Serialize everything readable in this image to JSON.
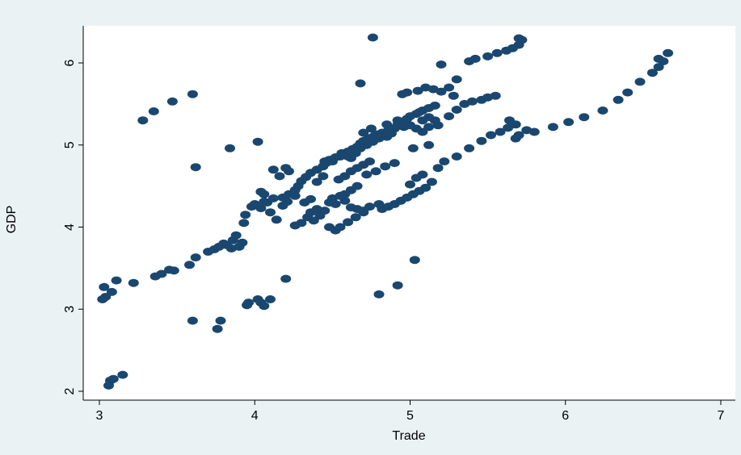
{
  "chart_data": {
    "type": "scatter",
    "title": "",
    "xlabel": "Trade",
    "ylabel": "GDP",
    "xlim": [
      2.95,
      7.05
    ],
    "ylim": [
      1.9,
      6.45
    ],
    "xticks": [
      3,
      4,
      5,
      6,
      7
    ],
    "yticks": [
      2,
      3,
      4,
      5,
      6
    ],
    "grid": false,
    "colors": {
      "background": "#eaf2f3",
      "plot_area": "#ffffff",
      "marker": "#1a476f",
      "axis": "#000000"
    },
    "series": [
      {
        "points": [
          [
            3.06,
            2.07
          ],
          [
            3.07,
            2.13
          ],
          [
            3.09,
            2.15
          ],
          [
            3.15,
            2.2
          ],
          [
            3.02,
            3.12
          ],
          [
            3.04,
            3.15
          ],
          [
            3.08,
            3.21
          ],
          [
            3.03,
            3.27
          ],
          [
            3.11,
            3.35
          ],
          [
            3.22,
            3.32
          ],
          [
            3.36,
            3.4
          ],
          [
            3.4,
            3.43
          ],
          [
            3.45,
            3.48
          ],
          [
            3.48,
            3.47
          ],
          [
            3.58,
            3.54
          ],
          [
            3.62,
            3.63
          ],
          [
            3.7,
            3.7
          ],
          [
            3.74,
            3.73
          ],
          [
            3.77,
            3.76
          ],
          [
            3.8,
            3.8
          ],
          [
            3.82,
            3.78
          ],
          [
            3.86,
            3.84
          ],
          [
            3.88,
            3.9
          ],
          [
            3.85,
            3.74
          ],
          [
            3.92,
            3.81
          ],
          [
            3.9,
            3.76
          ],
          [
            3.93,
            4.05
          ],
          [
            3.94,
            4.15
          ],
          [
            3.98,
            4.25
          ],
          [
            4.0,
            4.28
          ],
          [
            4.04,
            4.23
          ],
          [
            4.06,
            4.31
          ],
          [
            4.04,
            4.43
          ],
          [
            4.1,
            4.18
          ],
          [
            4.14,
            4.09
          ],
          [
            4.18,
            4.26
          ],
          [
            4.21,
            4.31
          ],
          [
            4.18,
            4.36
          ],
          [
            4.22,
            4.4
          ],
          [
            4.26,
            4.45
          ],
          [
            4.28,
            4.5
          ],
          [
            4.3,
            4.56
          ],
          [
            4.33,
            4.61
          ],
          [
            4.36,
            4.66
          ],
          [
            4.4,
            4.7
          ],
          [
            4.44,
            4.74
          ],
          [
            4.45,
            4.8
          ],
          [
            4.48,
            4.82
          ],
          [
            4.52,
            4.85
          ],
          [
            4.55,
            4.86
          ],
          [
            4.58,
            4.88
          ],
          [
            4.6,
            4.92
          ],
          [
            4.63,
            4.95
          ],
          [
            4.66,
            4.98
          ],
          [
            4.68,
            5.02
          ],
          [
            4.7,
            5.05
          ],
          [
            4.73,
            5.08
          ],
          [
            4.76,
            5.1
          ],
          [
            4.78,
            5.13
          ],
          [
            4.82,
            5.15
          ],
          [
            4.86,
            5.18
          ],
          [
            4.88,
            5.2
          ],
          [
            4.92,
            5.25
          ],
          [
            4.95,
            5.28
          ],
          [
            4.98,
            5.32
          ],
          [
            5.0,
            5.35
          ],
          [
            5.04,
            5.38
          ],
          [
            5.08,
            5.42
          ],
          [
            5.12,
            5.45
          ],
          [
            5.16,
            5.48
          ],
          [
            4.7,
            5.15
          ],
          [
            4.75,
            5.2
          ],
          [
            4.85,
            5.25
          ],
          [
            4.92,
            5.3
          ],
          [
            5.06,
            5.4
          ],
          [
            4.95,
            5.62
          ],
          [
            4.98,
            5.64
          ],
          [
            5.05,
            5.66
          ],
          [
            5.1,
            5.7
          ],
          [
            5.15,
            5.68
          ],
          [
            5.2,
            5.65
          ],
          [
            5.25,
            5.7
          ],
          [
            5.3,
            5.8
          ],
          [
            5.38,
            6.02
          ],
          [
            5.42,
            6.05
          ],
          [
            5.5,
            6.08
          ],
          [
            5.56,
            6.12
          ],
          [
            5.62,
            6.15
          ],
          [
            5.66,
            6.18
          ],
          [
            5.7,
            6.22
          ],
          [
            5.72,
            6.28
          ],
          [
            5.7,
            6.3
          ],
          [
            5.3,
            5.43
          ],
          [
            5.35,
            5.5
          ],
          [
            5.4,
            5.53
          ],
          [
            5.46,
            5.55
          ],
          [
            5.5,
            5.58
          ],
          [
            5.55,
            5.6
          ],
          [
            5.2,
            5.98
          ],
          [
            5.28,
            5.6
          ],
          [
            4.82,
            4.22
          ],
          [
            4.86,
            4.25
          ],
          [
            4.9,
            4.28
          ],
          [
            4.94,
            4.32
          ],
          [
            4.98,
            4.36
          ],
          [
            5.02,
            4.4
          ],
          [
            5.06,
            4.44
          ],
          [
            5.1,
            4.48
          ],
          [
            5.14,
            4.55
          ],
          [
            5.0,
            4.52
          ],
          [
            5.04,
            4.6
          ],
          [
            5.08,
            4.64
          ],
          [
            5.18,
            4.72
          ],
          [
            5.22,
            4.8
          ],
          [
            5.3,
            4.86
          ],
          [
            5.38,
            4.96
          ],
          [
            5.46,
            5.05
          ],
          [
            5.52,
            5.12
          ],
          [
            5.58,
            5.16
          ],
          [
            5.63,
            5.21
          ],
          [
            5.68,
            5.25
          ],
          [
            5.75,
            5.18
          ],
          [
            5.8,
            5.16
          ],
          [
            5.92,
            5.22
          ],
          [
            6.02,
            5.28
          ],
          [
            6.12,
            5.34
          ],
          [
            6.24,
            5.42
          ],
          [
            6.34,
            5.55
          ],
          [
            6.4,
            5.64
          ],
          [
            6.48,
            5.77
          ],
          [
            6.56,
            5.88
          ],
          [
            6.6,
            5.95
          ],
          [
            6.63,
            6.02
          ],
          [
            6.6,
            6.05
          ],
          [
            6.66,
            6.12
          ],
          [
            5.68,
            5.08
          ],
          [
            5.7,
            5.12
          ],
          [
            4.68,
            5.75
          ],
          [
            4.76,
            6.31
          ],
          [
            4.8,
            3.18
          ],
          [
            4.92,
            3.29
          ],
          [
            5.03,
            3.6
          ],
          [
            3.28,
            5.3
          ],
          [
            3.35,
            5.41
          ],
          [
            3.47,
            5.53
          ],
          [
            3.6,
            5.62
          ],
          [
            3.62,
            4.73
          ],
          [
            3.84,
            4.96
          ],
          [
            4.02,
            5.04
          ],
          [
            3.6,
            2.86
          ],
          [
            3.76,
            2.76
          ],
          [
            3.78,
            2.86
          ],
          [
            3.95,
            3.05
          ],
          [
            3.96,
            3.08
          ],
          [
            4.02,
            3.12
          ],
          [
            4.04,
            3.08
          ],
          [
            4.06,
            3.04
          ],
          [
            4.1,
            3.12
          ],
          [
            4.2,
            3.37
          ],
          [
            4.38,
            4.08
          ],
          [
            4.42,
            4.14
          ],
          [
            4.45,
            4.2
          ],
          [
            4.48,
            4.0
          ],
          [
            4.52,
            3.96
          ],
          [
            4.55,
            4.0
          ],
          [
            4.6,
            4.06
          ],
          [
            4.65,
            4.12
          ],
          [
            4.7,
            4.2
          ],
          [
            4.74,
            4.25
          ],
          [
            4.8,
            4.28
          ],
          [
            4.26,
            4.02
          ],
          [
            4.3,
            4.05
          ],
          [
            4.34,
            4.12
          ],
          [
            4.36,
            4.18
          ],
          [
            4.4,
            4.22
          ],
          [
            4.48,
            4.3
          ],
          [
            4.5,
            4.35
          ],
          [
            4.55,
            4.38
          ],
          [
            4.58,
            4.4
          ],
          [
            4.62,
            4.45
          ],
          [
            4.66,
            4.5
          ],
          [
            4.54,
            4.58
          ],
          [
            4.58,
            4.62
          ],
          [
            4.62,
            4.68
          ],
          [
            4.66,
            4.72
          ],
          [
            4.7,
            4.76
          ],
          [
            4.74,
            4.8
          ],
          [
            4.62,
            4.84
          ],
          [
            4.65,
            4.9
          ],
          [
            4.68,
            4.96
          ],
          [
            4.72,
            5.0
          ],
          [
            4.76,
            5.04
          ],
          [
            4.8,
            5.08
          ],
          [
            4.4,
            4.55
          ],
          [
            4.44,
            4.62
          ],
          [
            4.36,
            4.34
          ],
          [
            4.32,
            4.3
          ],
          [
            4.26,
            4.38
          ],
          [
            4.16,
            4.62
          ],
          [
            4.22,
            4.68
          ],
          [
            4.12,
            4.7
          ],
          [
            4.2,
            4.72
          ],
          [
            4.08,
            4.3
          ],
          [
            4.12,
            4.35
          ],
          [
            4.06,
            4.4
          ],
          [
            4.85,
            5.1
          ],
          [
            4.88,
            5.14
          ],
          [
            4.9,
            5.2
          ],
          [
            4.96,
            5.22
          ],
          [
            5.0,
            5.24
          ],
          [
            5.04,
            5.2
          ],
          [
            5.08,
            5.16
          ],
          [
            5.12,
            5.22
          ],
          [
            5.16,
            5.3
          ],
          [
            5.12,
            5.34
          ],
          [
            5.08,
            5.3
          ],
          [
            4.56,
            4.9
          ],
          [
            4.6,
            4.86
          ],
          [
            4.5,
            4.8
          ],
          [
            4.46,
            4.78
          ],
          [
            4.62,
            4.24
          ],
          [
            4.66,
            4.22
          ],
          [
            4.7,
            4.18
          ],
          [
            4.58,
            4.32
          ],
          [
            4.52,
            4.28
          ],
          [
            5.64,
            5.3
          ],
          [
            5.25,
            5.35
          ],
          [
            5.18,
            5.24
          ],
          [
            5.12,
            5.0
          ],
          [
            5.02,
            4.96
          ],
          [
            4.9,
            4.78
          ],
          [
            4.84,
            4.74
          ],
          [
            4.78,
            4.68
          ],
          [
            4.72,
            4.64
          ]
        ]
      }
    ]
  }
}
